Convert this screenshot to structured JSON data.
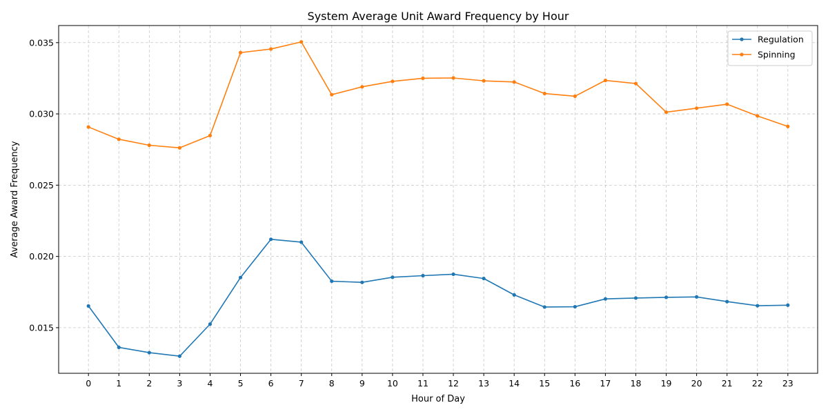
{
  "chart_data": {
    "type": "line",
    "title": "System Average Unit Award Frequency by Hour",
    "xlabel": "Hour of Day",
    "ylabel": "Average Award Frequency",
    "x": [
      0,
      1,
      2,
      3,
      4,
      5,
      6,
      7,
      8,
      9,
      10,
      11,
      12,
      13,
      14,
      15,
      16,
      17,
      18,
      19,
      20,
      21,
      22,
      23
    ],
    "x_tick_labels": [
      "0",
      "1",
      "2",
      "3",
      "4",
      "5",
      "6",
      "7",
      "8",
      "9",
      "10",
      "11",
      "12",
      "13",
      "14",
      "15",
      "16",
      "17",
      "18",
      "19",
      "20",
      "21",
      "22",
      "23"
    ],
    "xlim": [
      -0.98,
      23.98
    ],
    "ylim": [
      0.0118,
      0.0362
    ],
    "y_ticks": [
      0.015,
      0.02,
      0.025,
      0.03,
      0.035
    ],
    "y_tick_labels": [
      "0.015",
      "0.020",
      "0.025",
      "0.030",
      "0.035"
    ],
    "grid": true,
    "legend_position": "top-right",
    "series": [
      {
        "name": "Regulation",
        "color": "#1f77b4",
        "values": [
          0.01652,
          0.01362,
          0.01325,
          0.013,
          0.01525,
          0.01852,
          0.0212,
          0.021,
          0.01826,
          0.01818,
          0.01854,
          0.01865,
          0.01875,
          0.01845,
          0.0173,
          0.01645,
          0.01647,
          0.01702,
          0.01708,
          0.01713,
          0.01716,
          0.01683,
          0.01654,
          0.01658
        ]
      },
      {
        "name": "Spinning",
        "color": "#ff7f0e",
        "values": [
          0.02908,
          0.02822,
          0.0278,
          0.02762,
          0.02848,
          0.0343,
          0.03455,
          0.03505,
          0.03135,
          0.0319,
          0.03228,
          0.0325,
          0.03252,
          0.03232,
          0.03224,
          0.03143,
          0.03124,
          0.03235,
          0.03213,
          0.03012,
          0.0304,
          0.03068,
          0.02986,
          0.02912
        ]
      }
    ]
  }
}
